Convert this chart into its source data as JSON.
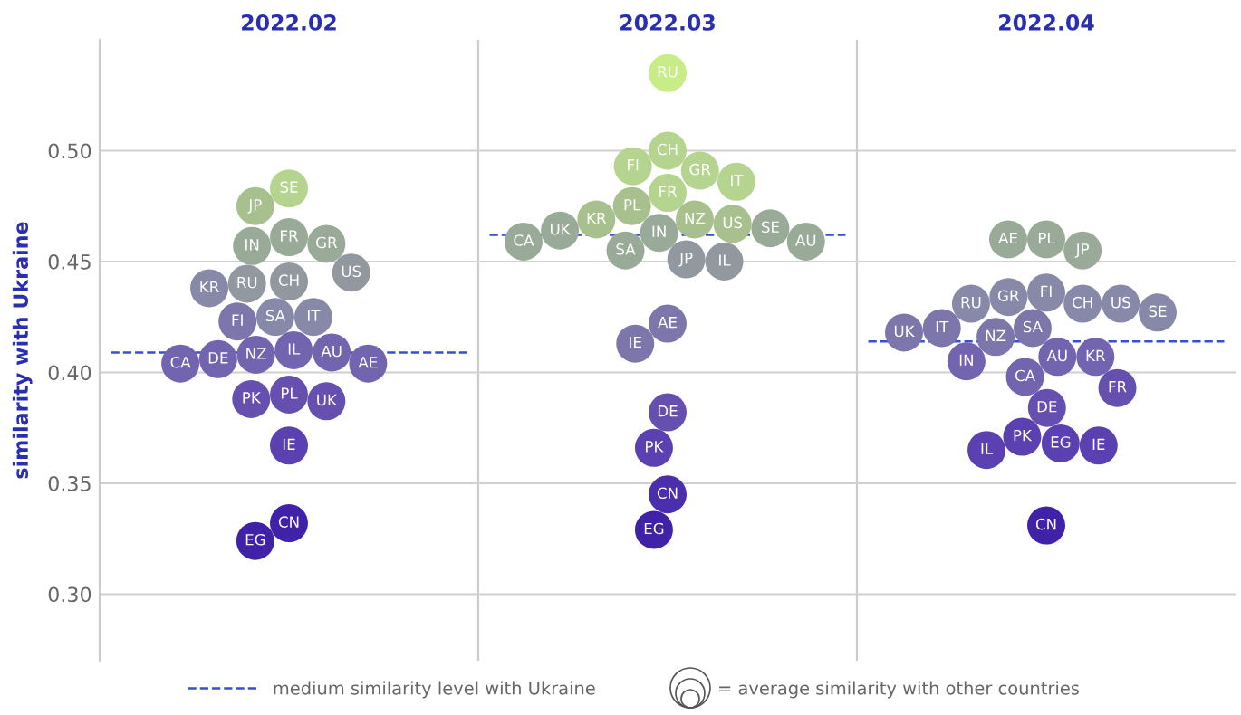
{
  "chart_data": {
    "type": "scatter",
    "categories": [
      "2022.02",
      "2022.03",
      "2022.04"
    ],
    "ylabel": "similarity with Ukraine",
    "ylim": [
      0.27,
      0.55
    ],
    "yticks": [
      {
        "value": 0.3,
        "label": "0.30"
      },
      {
        "value": 0.35,
        "label": "0.35"
      },
      {
        "value": 0.4,
        "label": "0.40"
      },
      {
        "value": 0.45,
        "label": "0.45"
      },
      {
        "value": 0.5,
        "label": "0.50"
      }
    ],
    "grid": "y",
    "marker": "circle",
    "annotations": [
      "= average similarity with other countries"
    ],
    "ref_lines": [
      {
        "axis": "y",
        "value": 0.409,
        "label": "medium similarity level with Ukraine",
        "color": "#3a4fd0",
        "line_style": "dashed"
      },
      {
        "axis": "y",
        "value": 0.462,
        "color": "#3a4fd0",
        "line_style": "dashed"
      },
      {
        "axis": "y",
        "value": 0.414,
        "color": "#3a4fd0",
        "line_style": "dashed"
      }
    ],
    "series": [
      {
        "name": "SE",
        "color": "#b4d490",
        "x": [
          "2022.02"
        ],
        "values": [
          0.483
        ]
      },
      {
        "name": "JP",
        "color": "#a8c08e",
        "x": [
          "2022.02"
        ],
        "values": [
          0.475
        ]
      },
      {
        "name": "GR",
        "color": "#9aaa98",
        "x": [
          "2022.02"
        ],
        "values": [
          0.458
        ]
      },
      {
        "name": "FR",
        "color": "#9aaa98",
        "x": [
          "2022.02"
        ],
        "values": [
          0.461
        ]
      },
      {
        "name": "IN",
        "color": "#9aaa98",
        "x": [
          "2022.02"
        ],
        "values": [
          0.457
        ]
      },
      {
        "name": "US",
        "color": "#9298a0",
        "x": [
          "2022.02"
        ],
        "values": [
          0.445
        ]
      },
      {
        "name": "CH",
        "color": "#9298a0",
        "x": [
          "2022.02"
        ],
        "values": [
          0.441
        ]
      },
      {
        "name": "RU",
        "color": "#9298a0",
        "x": [
          "2022.02"
        ],
        "values": [
          0.44
        ]
      },
      {
        "name": "KR",
        "color": "#8888a8",
        "x": [
          "2022.02"
        ],
        "values": [
          0.438
        ]
      },
      {
        "name": "SA",
        "color": "#8888a8",
        "x": [
          "2022.02"
        ],
        "values": [
          0.425
        ]
      },
      {
        "name": "IT",
        "color": "#8888a8",
        "x": [
          "2022.02"
        ],
        "values": [
          0.425
        ]
      },
      {
        "name": "FI",
        "color": "#7d76aa",
        "x": [
          "2022.02"
        ],
        "values": [
          0.423
        ]
      },
      {
        "name": "IL",
        "color": "#7264ae",
        "x": [
          "2022.02"
        ],
        "values": [
          0.41
        ]
      },
      {
        "name": "AE",
        "color": "#7264ae",
        "x": [
          "2022.02"
        ],
        "values": [
          0.404
        ]
      },
      {
        "name": "AU",
        "color": "#7264ae",
        "x": [
          "2022.02"
        ],
        "values": [
          0.409
        ]
      },
      {
        "name": "NZ",
        "color": "#7264ae",
        "x": [
          "2022.02"
        ],
        "values": [
          0.408
        ]
      },
      {
        "name": "DE",
        "color": "#7264ae",
        "x": [
          "2022.02"
        ],
        "values": [
          0.406
        ]
      },
      {
        "name": "CA",
        "color": "#7264ae",
        "x": [
          "2022.02"
        ],
        "values": [
          0.404
        ]
      },
      {
        "name": "UK",
        "color": "#6550b0",
        "x": [
          "2022.02"
        ],
        "values": [
          0.387
        ]
      },
      {
        "name": "PL",
        "color": "#6550b0",
        "x": [
          "2022.02"
        ],
        "values": [
          0.39
        ]
      },
      {
        "name": "PK",
        "color": "#6550b0",
        "x": [
          "2022.02"
        ],
        "values": [
          0.388
        ]
      },
      {
        "name": "IE",
        "color": "#5a40b0",
        "x": [
          "2022.02"
        ],
        "values": [
          0.367
        ]
      },
      {
        "name": "CN",
        "color": "#4022a8",
        "x": [
          "2022.02"
        ],
        "values": [
          0.332
        ]
      },
      {
        "name": "EG",
        "color": "#4022a8",
        "x": [
          "2022.02"
        ],
        "values": [
          0.324
        ]
      },
      {
        "name": "RU",
        "color": "#c8ec88",
        "x": [
          "2022.03"
        ],
        "values": [
          0.535
        ]
      },
      {
        "name": "CH",
        "color": "#b4d490",
        "x": [
          "2022.03"
        ],
        "values": [
          0.5
        ]
      },
      {
        "name": "FI",
        "color": "#b4d490",
        "x": [
          "2022.03"
        ],
        "values": [
          0.493
        ]
      },
      {
        "name": "GR",
        "color": "#b4d490",
        "x": [
          "2022.03"
        ],
        "values": [
          0.491
        ]
      },
      {
        "name": "IT",
        "color": "#b4d490",
        "x": [
          "2022.03"
        ],
        "values": [
          0.486
        ]
      },
      {
        "name": "FR",
        "color": "#b4d490",
        "x": [
          "2022.03"
        ],
        "values": [
          0.481
        ]
      },
      {
        "name": "PL",
        "color": "#a8c08e",
        "x": [
          "2022.03"
        ],
        "values": [
          0.475
        ]
      },
      {
        "name": "US",
        "color": "#a8c08e",
        "x": [
          "2022.03"
        ],
        "values": [
          0.467
        ]
      },
      {
        "name": "NZ",
        "color": "#a8c08e",
        "x": [
          "2022.03"
        ],
        "values": [
          0.469
        ]
      },
      {
        "name": "KR",
        "color": "#a8c08e",
        "x": [
          "2022.03"
        ],
        "values": [
          0.469
        ]
      },
      {
        "name": "SE",
        "color": "#9aaa98",
        "x": [
          "2022.03"
        ],
        "values": [
          0.465
        ]
      },
      {
        "name": "UK",
        "color": "#9aaa98",
        "x": [
          "2022.03"
        ],
        "values": [
          0.464
        ]
      },
      {
        "name": "IN",
        "color": "#9aaa98",
        "x": [
          "2022.03"
        ],
        "values": [
          0.463
        ]
      },
      {
        "name": "AU",
        "color": "#9aaa98",
        "x": [
          "2022.03"
        ],
        "values": [
          0.459
        ]
      },
      {
        "name": "CA",
        "color": "#9aaa98",
        "x": [
          "2022.03"
        ],
        "values": [
          0.459
        ]
      },
      {
        "name": "SA",
        "color": "#9aaa98",
        "x": [
          "2022.03"
        ],
        "values": [
          0.455
        ]
      },
      {
        "name": "IL",
        "color": "#9298a0",
        "x": [
          "2022.03"
        ],
        "values": [
          0.45
        ]
      },
      {
        "name": "JP",
        "color": "#9298a0",
        "x": [
          "2022.03"
        ],
        "values": [
          0.451
        ]
      },
      {
        "name": "AE",
        "color": "#7d76aa",
        "x": [
          "2022.03"
        ],
        "values": [
          0.422
        ]
      },
      {
        "name": "IE",
        "color": "#7d76aa",
        "x": [
          "2022.03"
        ],
        "values": [
          0.413
        ]
      },
      {
        "name": "DE",
        "color": "#6550b0",
        "x": [
          "2022.03"
        ],
        "values": [
          0.382
        ]
      },
      {
        "name": "PK",
        "color": "#5a40b0",
        "x": [
          "2022.03"
        ],
        "values": [
          0.366
        ]
      },
      {
        "name": "CN",
        "color": "#4b2eab",
        "x": [
          "2022.03"
        ],
        "values": [
          0.345
        ]
      },
      {
        "name": "EG",
        "color": "#4022a8",
        "x": [
          "2022.03"
        ],
        "values": [
          0.329
        ]
      },
      {
        "name": "JP",
        "color": "#9aaa98",
        "x": [
          "2022.04"
        ],
        "values": [
          0.455
        ]
      },
      {
        "name": "PL",
        "color": "#9aaa98",
        "x": [
          "2022.04"
        ],
        "values": [
          0.46
        ]
      },
      {
        "name": "AE",
        "color": "#9aaa98",
        "x": [
          "2022.04"
        ],
        "values": [
          0.46
        ]
      },
      {
        "name": "GR",
        "color": "#8888a8",
        "x": [
          "2022.04"
        ],
        "values": [
          0.434
        ]
      },
      {
        "name": "FI",
        "color": "#8888a8",
        "x": [
          "2022.04"
        ],
        "values": [
          0.436
        ]
      },
      {
        "name": "CH",
        "color": "#8888a8",
        "x": [
          "2022.04"
        ],
        "values": [
          0.431
        ]
      },
      {
        "name": "SE",
        "color": "#8888a8",
        "x": [
          "2022.04"
        ],
        "values": [
          0.427
        ]
      },
      {
        "name": "US",
        "color": "#8888a8",
        "x": [
          "2022.04"
        ],
        "values": [
          0.431
        ]
      },
      {
        "name": "RU",
        "color": "#8888a8",
        "x": [
          "2022.04"
        ],
        "values": [
          0.431
        ]
      },
      {
        "name": "SA",
        "color": "#7d76aa",
        "x": [
          "2022.04"
        ],
        "values": [
          0.42
        ]
      },
      {
        "name": "IT",
        "color": "#7d76aa",
        "x": [
          "2022.04"
        ],
        "values": [
          0.42
        ]
      },
      {
        "name": "UK",
        "color": "#7d76aa",
        "x": [
          "2022.04"
        ],
        "values": [
          0.418
        ]
      },
      {
        "name": "NZ",
        "color": "#7d76aa",
        "x": [
          "2022.04"
        ],
        "values": [
          0.416
        ]
      },
      {
        "name": "IN",
        "color": "#7264ae",
        "x": [
          "2022.04"
        ],
        "values": [
          0.405
        ]
      },
      {
        "name": "AU",
        "color": "#7264ae",
        "x": [
          "2022.04"
        ],
        "values": [
          0.407
        ]
      },
      {
        "name": "KR",
        "color": "#7264ae",
        "x": [
          "2022.04"
        ],
        "values": [
          0.407
        ]
      },
      {
        "name": "CA",
        "color": "#7264ae",
        "x": [
          "2022.04"
        ],
        "values": [
          0.398
        ]
      },
      {
        "name": "FR",
        "color": "#6550b0",
        "x": [
          "2022.04"
        ],
        "values": [
          0.393
        ]
      },
      {
        "name": "DE",
        "color": "#6550b0",
        "x": [
          "2022.04"
        ],
        "values": [
          0.384
        ]
      },
      {
        "name": "PK",
        "color": "#5a40b0",
        "x": [
          "2022.04"
        ],
        "values": [
          0.371
        ]
      },
      {
        "name": "IE",
        "color": "#5a40b0",
        "x": [
          "2022.04"
        ],
        "values": [
          0.367
        ]
      },
      {
        "name": "IL",
        "color": "#5a40b0",
        "x": [
          "2022.04"
        ],
        "values": [
          0.365
        ]
      },
      {
        "name": "EG",
        "color": "#5a40b0",
        "x": [
          "2022.04"
        ],
        "values": [
          0.368
        ]
      },
      {
        "name": "CN",
        "color": "#4022a8",
        "x": [
          "2022.04"
        ],
        "values": [
          0.331
        ]
      }
    ]
  }
}
